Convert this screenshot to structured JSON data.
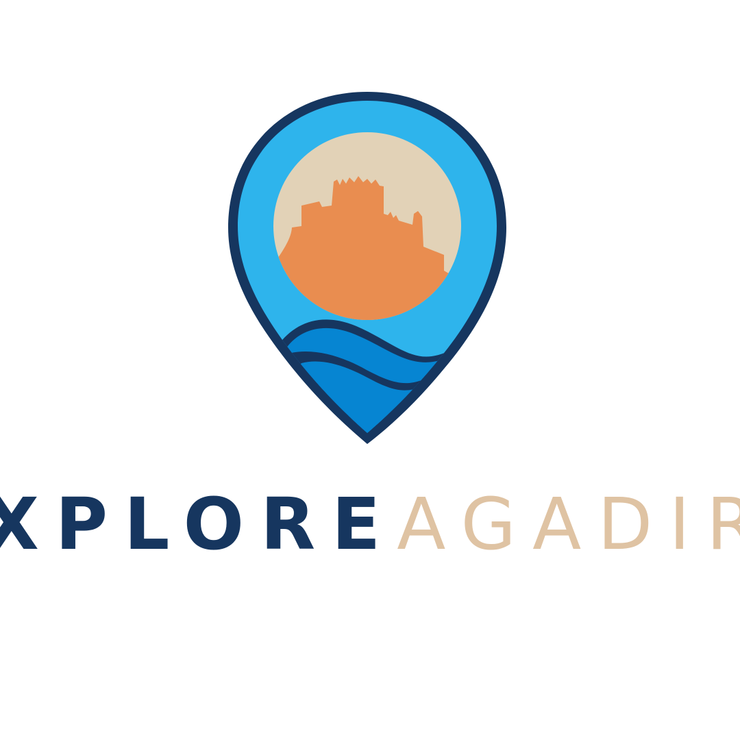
{
  "brand": {
    "word_primary": "XPLORE",
    "word_secondary": "AGADIR",
    "colors": {
      "navy": "#16365f",
      "sky": "#2eb4ec",
      "sand": "#e2d2b7",
      "sun_orange": "#e98d50",
      "sea_blue": "#0685d2",
      "sand_text": "#dfc3a3"
    },
    "logo_icon": "map-pin-kasbah-sea-icon"
  }
}
